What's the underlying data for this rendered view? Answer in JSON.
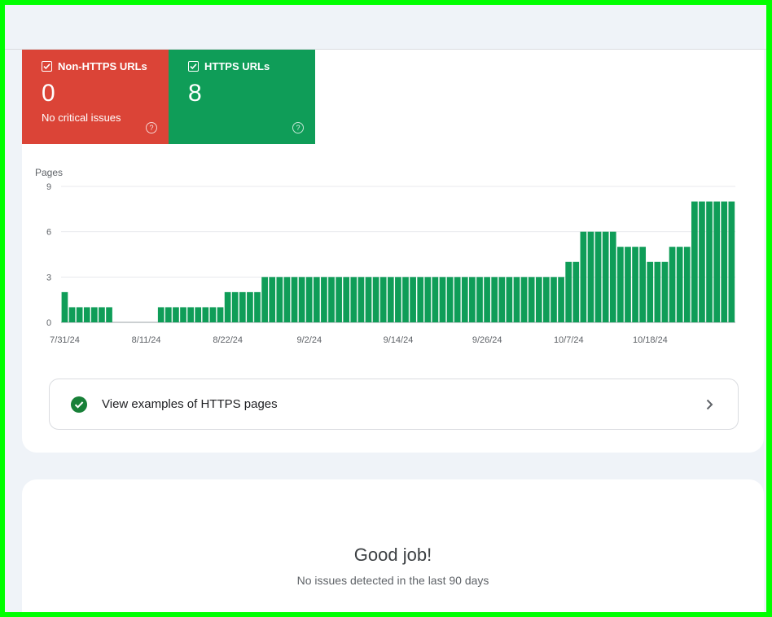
{
  "tiles": {
    "non_https": {
      "label": "Non-HTTPS URLs",
      "value": "0",
      "subtitle": "No critical issues",
      "color": "#db4437",
      "help_icon": "help-circle-icon"
    },
    "https": {
      "label": "HTTPS URLs",
      "value": "8",
      "color": "#0f9d58",
      "help_icon": "help-circle-icon"
    }
  },
  "chart_data": {
    "type": "bar",
    "ylabel": "Pages",
    "ylim": [
      0,
      9
    ],
    "yticks": [
      0,
      3,
      6,
      9
    ],
    "xtick_labels": [
      "7/31/24",
      "8/11/24",
      "8/22/24",
      "9/2/24",
      "9/14/24",
      "9/26/24",
      "10/7/24",
      "10/18/24"
    ],
    "xtick_indices": [
      0,
      11,
      22,
      33,
      45,
      57,
      68,
      79
    ],
    "bar_color": "#0f9d58",
    "values": [
      2,
      1,
      1,
      1,
      1,
      1,
      1,
      0,
      0,
      0,
      0,
      0,
      0,
      1,
      1,
      1,
      1,
      1,
      1,
      1,
      1,
      1,
      2,
      2,
      2,
      2,
      2,
      3,
      3,
      3,
      3,
      3,
      3,
      3,
      3,
      3,
      3,
      3,
      3,
      3,
      3,
      3,
      3,
      3,
      3,
      3,
      3,
      3,
      3,
      3,
      3,
      3,
      3,
      3,
      3,
      3,
      3,
      3,
      3,
      3,
      3,
      3,
      3,
      3,
      3,
      3,
      3,
      3,
      4,
      4,
      6,
      6,
      6,
      6,
      6,
      5,
      5,
      5,
      5,
      4,
      4,
      4,
      5,
      5,
      5,
      8,
      8,
      8,
      8,
      8,
      8
    ]
  },
  "examples": {
    "label": "View examples of HTTPS pages",
    "icon": "check-circle-icon",
    "chevron": "chevron-right-icon"
  },
  "status": {
    "title": "Good job!",
    "subtitle": "No issues detected in the last 90 days"
  }
}
